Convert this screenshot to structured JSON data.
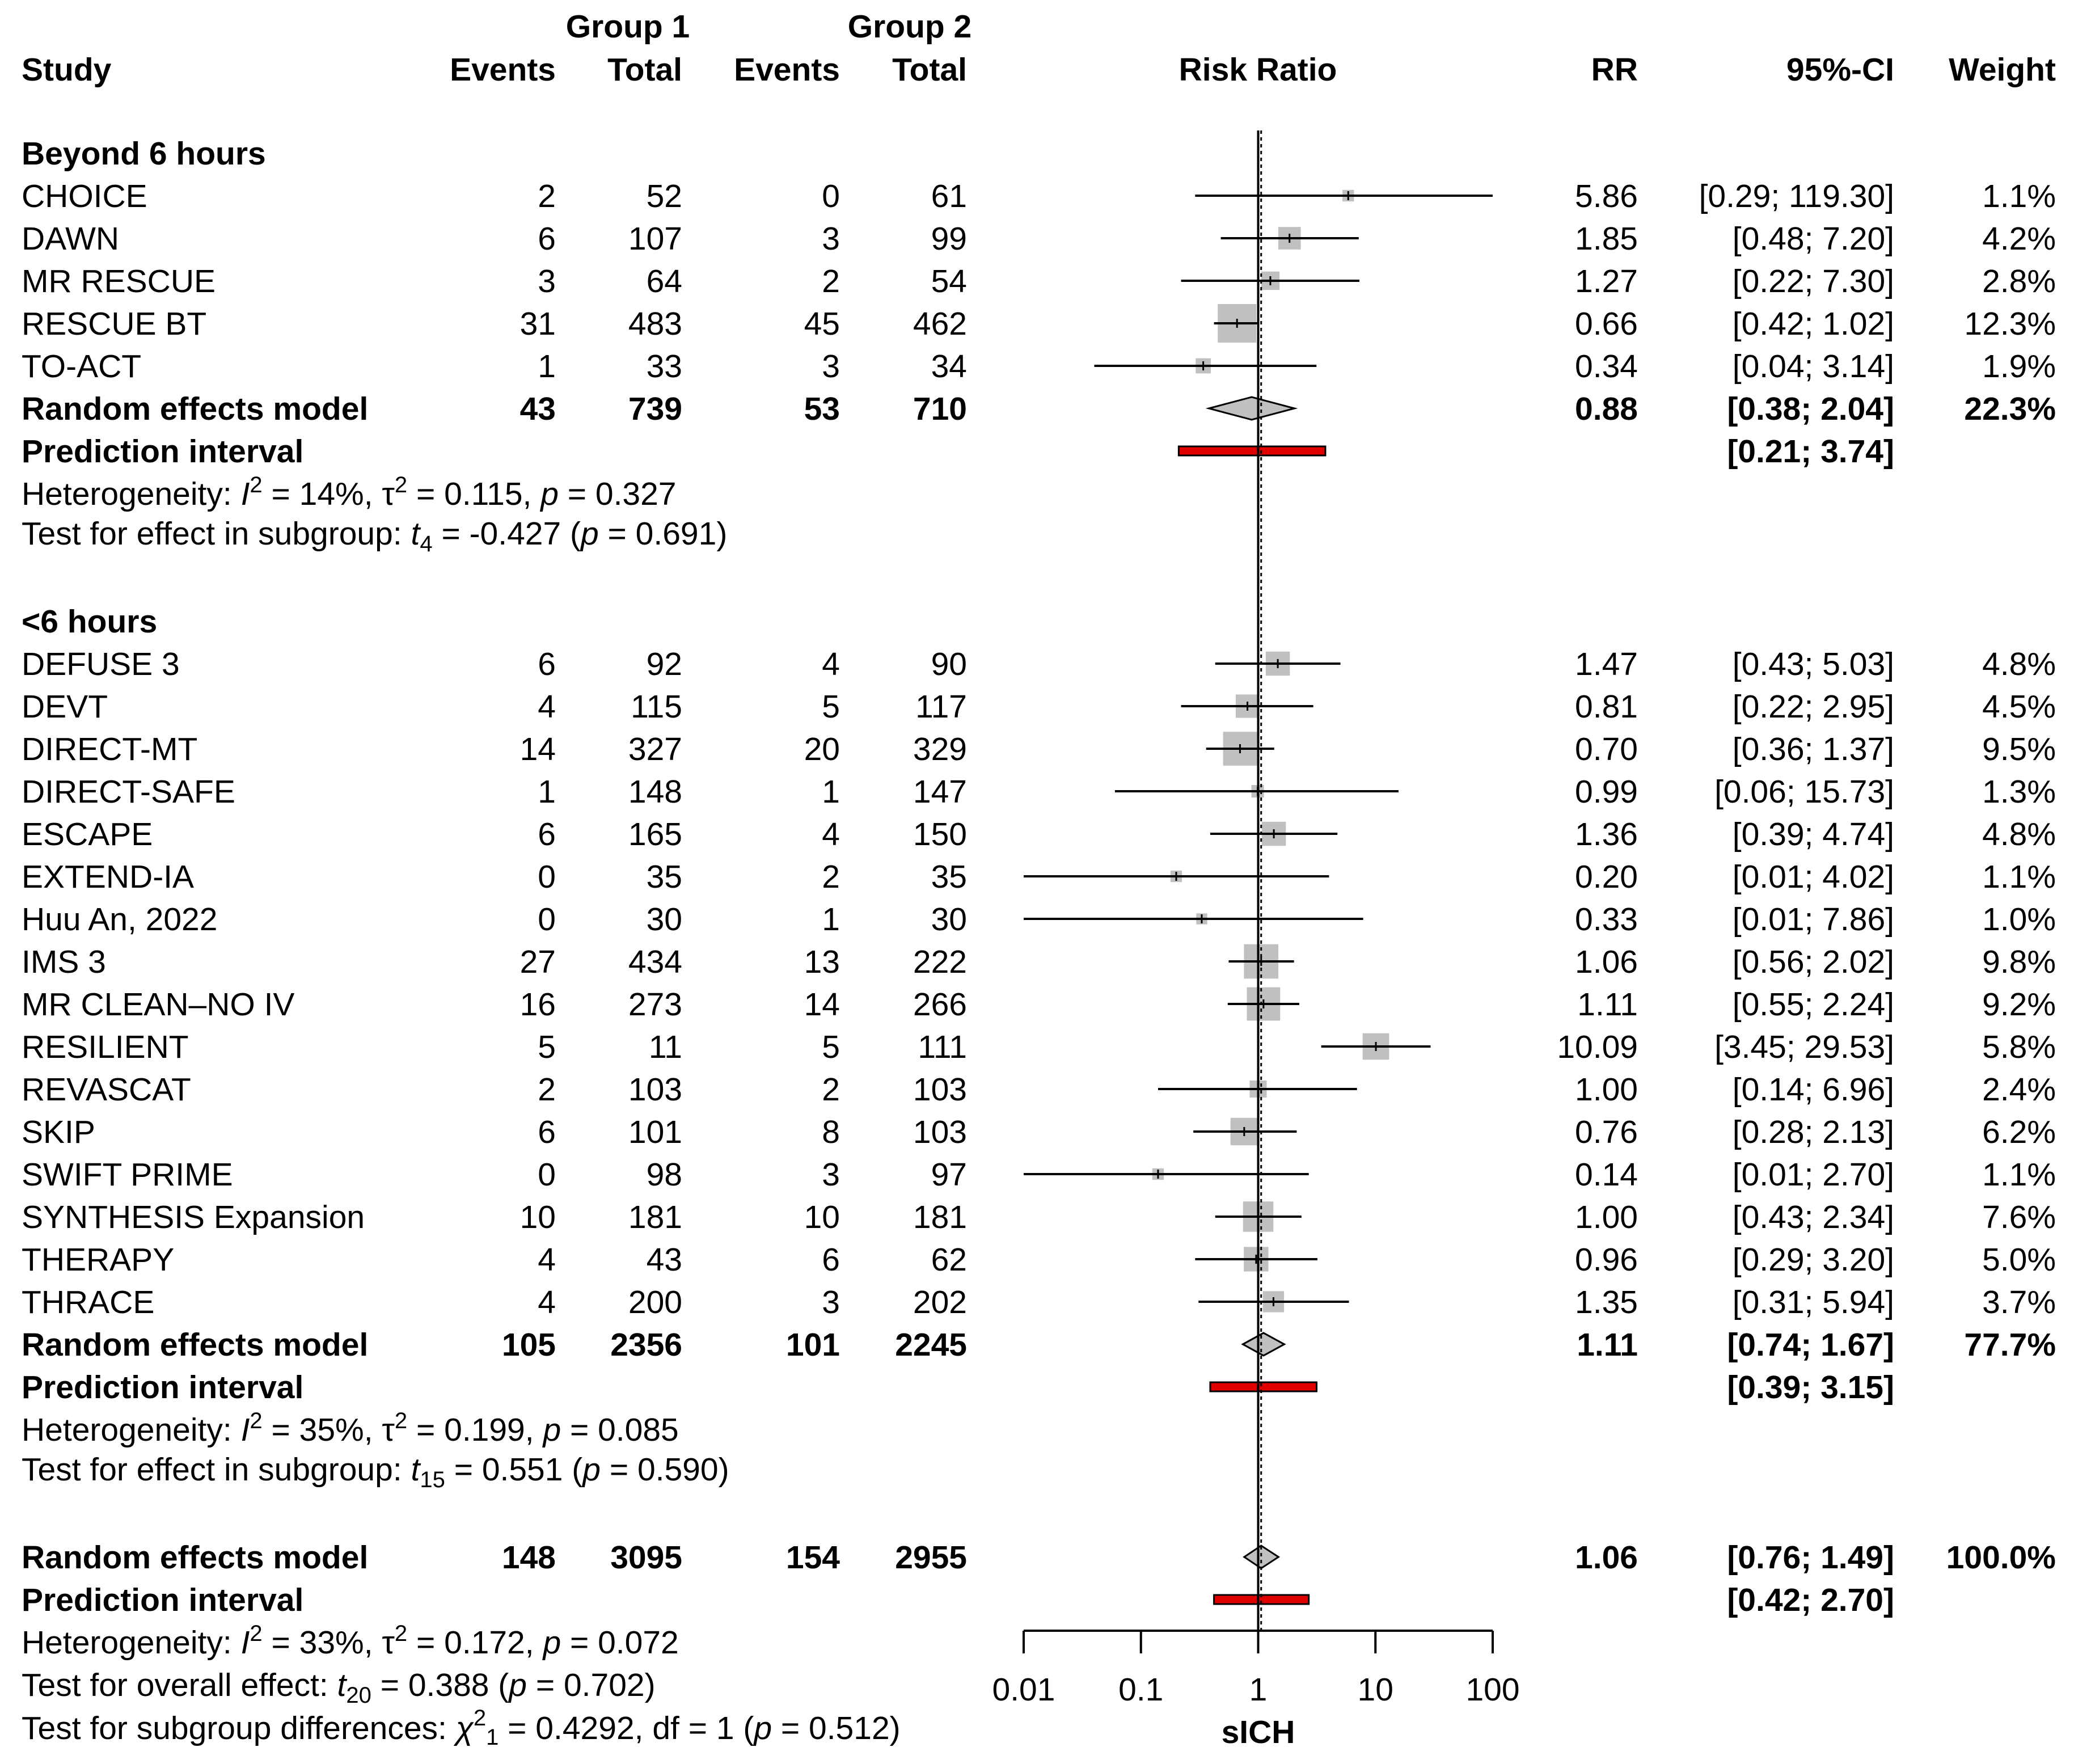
{
  "chart_data": {
    "type": "forest",
    "xaxis": {
      "scale": "log",
      "range": [
        0.01,
        100
      ],
      "ticks": [
        0.01,
        0.1,
        1,
        10,
        100
      ],
      "tick_labels": [
        "0.01",
        "0.1",
        "1",
        "10",
        "100"
      ],
      "label": "sICH",
      "null_value": 1,
      "overall_estimate": 1.06
    },
    "headers": {
      "group1": "Group 1",
      "group2": "Group 2",
      "study": "Study",
      "events": "Events",
      "total": "Total",
      "risk_ratio": "Risk Ratio",
      "rr": "RR",
      "ci": "95%-CI",
      "weight": "Weight"
    },
    "colors": {
      "box": "#c0c0c0",
      "diamond": "#c0c0c0",
      "prediction": "#e00000"
    },
    "subgroups": [
      {
        "name": "Beyond 6 hours",
        "studies": [
          {
            "study": "CHOICE",
            "e1": "2",
            "n1": "52",
            "e2": "0",
            "n2": "61",
            "rr": 5.86,
            "lo": 0.29,
            "hi": 119.3,
            "rr_text": "5.86",
            "ci_text": "[0.29; 119.30]",
            "weight": 1.1,
            "weight_text": "1.1%"
          },
          {
            "study": "DAWN",
            "e1": "6",
            "n1": "107",
            "e2": "3",
            "n2": "99",
            "rr": 1.85,
            "lo": 0.48,
            "hi": 7.2,
            "rr_text": "1.85",
            "ci_text": "[0.48;   7.20]",
            "weight": 4.2,
            "weight_text": "4.2%"
          },
          {
            "study": "MR RESCUE",
            "e1": "3",
            "n1": "64",
            "e2": "2",
            "n2": "54",
            "rr": 1.27,
            "lo": 0.22,
            "hi": 7.3,
            "rr_text": "1.27",
            "ci_text": "[0.22;   7.30]",
            "weight": 2.8,
            "weight_text": "2.8%"
          },
          {
            "study": "RESCUE BT",
            "e1": "31",
            "n1": "483",
            "e2": "45",
            "n2": "462",
            "rr": 0.66,
            "lo": 0.42,
            "hi": 1.02,
            "rr_text": "0.66",
            "ci_text": "[0.42;   1.02]",
            "weight": 12.3,
            "weight_text": "12.3%"
          },
          {
            "study": "TO-ACT",
            "e1": "1",
            "n1": "33",
            "e2": "3",
            "n2": "34",
            "rr": 0.34,
            "lo": 0.04,
            "hi": 3.14,
            "rr_text": "0.34",
            "ci_text": "[0.04;   3.14]",
            "weight": 1.9,
            "weight_text": "1.9%"
          }
        ],
        "model": {
          "label": "Random effects model",
          "e1": "43",
          "n1": "739",
          "e2": "53",
          "n2": "710",
          "rr": 0.88,
          "lo": 0.38,
          "hi": 2.04,
          "rr_text": "0.88",
          "ci_text": "[0.38;   2.04]",
          "weight_text": "22.3%"
        },
        "prediction": {
          "label": "Prediction interval",
          "lo": 0.21,
          "hi": 3.74,
          "ci_text": "[0.21;   3.74]"
        },
        "heterogeneity": {
          "prefix": "Heterogeneity: ",
          "I": "I",
          "sup": "2",
          "i2": " = 14%, ",
          "tau": "τ",
          "tau2": " = 0.115, ",
          "p": "p",
          "pval": " = 0.327"
        },
        "test": {
          "prefix": "Test for effect in subgroup: ",
          "t": "t",
          "df": "4",
          "tval": " = -0.427 (",
          "p": "p",
          "pval": " = 0.691)"
        }
      },
      {
        "name": "<6 hours",
        "studies": [
          {
            "study": "DEFUSE 3",
            "e1": "6",
            "n1": "92",
            "e2": "4",
            "n2": "90",
            "rr": 1.47,
            "lo": 0.43,
            "hi": 5.03,
            "rr_text": "1.47",
            "ci_text": "[0.43;   5.03]",
            "weight": 4.8,
            "weight_text": "4.8%"
          },
          {
            "study": "DEVT",
            "e1": "4",
            "n1": "115",
            "e2": "5",
            "n2": "117",
            "rr": 0.81,
            "lo": 0.22,
            "hi": 2.95,
            "rr_text": "0.81",
            "ci_text": "[0.22;   2.95]",
            "weight": 4.5,
            "weight_text": "4.5%"
          },
          {
            "study": "DIRECT-MT",
            "e1": "14",
            "n1": "327",
            "e2": "20",
            "n2": "329",
            "rr": 0.7,
            "lo": 0.36,
            "hi": 1.37,
            "rr_text": "0.70",
            "ci_text": "[0.36;   1.37]",
            "weight": 9.5,
            "weight_text": "9.5%"
          },
          {
            "study": "DIRECT-SAFE",
            "e1": "1",
            "n1": "148",
            "e2": "1",
            "n2": "147",
            "rr": 0.99,
            "lo": 0.06,
            "hi": 15.73,
            "rr_text": "0.99",
            "ci_text": "[0.06;  15.73]",
            "weight": 1.3,
            "weight_text": "1.3%"
          },
          {
            "study": "ESCAPE",
            "e1": "6",
            "n1": "165",
            "e2": "4",
            "n2": "150",
            "rr": 1.36,
            "lo": 0.39,
            "hi": 4.74,
            "rr_text": "1.36",
            "ci_text": "[0.39;   4.74]",
            "weight": 4.8,
            "weight_text": "4.8%"
          },
          {
            "study": "EXTEND-IA",
            "e1": "0",
            "n1": "35",
            "e2": "2",
            "n2": "35",
            "rr": 0.2,
            "lo": 0.01,
            "hi": 4.02,
            "rr_text": "0.20",
            "ci_text": "[0.01;   4.02]",
            "weight": 1.1,
            "weight_text": "1.1%"
          },
          {
            "study": "Huu An, 2022",
            "e1": "0",
            "n1": "30",
            "e2": "1",
            "n2": "30",
            "rr": 0.33,
            "lo": 0.01,
            "hi": 7.86,
            "rr_text": "0.33",
            "ci_text": "[0.01;   7.86]",
            "weight": 1.0,
            "weight_text": "1.0%"
          },
          {
            "study": "IMS 3",
            "e1": "27",
            "n1": "434",
            "e2": "13",
            "n2": "222",
            "rr": 1.06,
            "lo": 0.56,
            "hi": 2.02,
            "rr_text": "1.06",
            "ci_text": "[0.56;   2.02]",
            "weight": 9.8,
            "weight_text": "9.8%"
          },
          {
            "study": "MR CLEAN–NO IV",
            "e1": "16",
            "n1": "273",
            "e2": "14",
            "n2": "266",
            "rr": 1.11,
            "lo": 0.55,
            "hi": 2.24,
            "rr_text": "1.11",
            "ci_text": "[0.55;   2.24]",
            "weight": 9.2,
            "weight_text": "9.2%"
          },
          {
            "study": "RESILIENT",
            "e1": "5",
            "n1": "11",
            "e2": "5",
            "n2": "111",
            "rr": 10.09,
            "lo": 3.45,
            "hi": 29.53,
            "rr_text": "10.09",
            "ci_text": "[3.45;  29.53]",
            "weight": 5.8,
            "weight_text": "5.8%"
          },
          {
            "study": "REVASCAT",
            "e1": "2",
            "n1": "103",
            "e2": "2",
            "n2": "103",
            "rr": 1.0,
            "lo": 0.14,
            "hi": 6.96,
            "rr_text": "1.00",
            "ci_text": "[0.14;   6.96]",
            "weight": 2.4,
            "weight_text": "2.4%"
          },
          {
            "study": "SKIP",
            "e1": "6",
            "n1": "101",
            "e2": "8",
            "n2": "103",
            "rr": 0.76,
            "lo": 0.28,
            "hi": 2.13,
            "rr_text": "0.76",
            "ci_text": "[0.28;   2.13]",
            "weight": 6.2,
            "weight_text": "6.2%"
          },
          {
            "study": "SWIFT PRIME",
            "e1": "0",
            "n1": "98",
            "e2": "3",
            "n2": "97",
            "rr": 0.14,
            "lo": 0.01,
            "hi": 2.7,
            "rr_text": "0.14",
            "ci_text": "[0.01;   2.70]",
            "weight": 1.1,
            "weight_text": "1.1%"
          },
          {
            "study": "SYNTHESIS Expansion",
            "e1": "10",
            "n1": "181",
            "e2": "10",
            "n2": "181",
            "rr": 1.0,
            "lo": 0.43,
            "hi": 2.34,
            "rr_text": "1.00",
            "ci_text": "[0.43;   2.34]",
            "weight": 7.6,
            "weight_text": "7.6%"
          },
          {
            "study": "THERAPY",
            "e1": "4",
            "n1": "43",
            "e2": "6",
            "n2": "62",
            "rr": 0.96,
            "lo": 0.29,
            "hi": 3.2,
            "rr_text": "0.96",
            "ci_text": "[0.29;   3.20]",
            "weight": 5.0,
            "weight_text": "5.0%"
          },
          {
            "study": "THRACE",
            "e1": "4",
            "n1": "200",
            "e2": "3",
            "n2": "202",
            "rr": 1.35,
            "lo": 0.31,
            "hi": 5.94,
            "rr_text": "1.35",
            "ci_text": "[0.31;   5.94]",
            "weight": 3.7,
            "weight_text": "3.7%"
          }
        ],
        "model": {
          "label": "Random effects model",
          "e1": "105",
          "n1": "2356",
          "e2": "101",
          "n2": "2245",
          "rr": 1.11,
          "lo": 0.74,
          "hi": 1.67,
          "rr_text": "1.11",
          "ci_text": "[0.74;   1.67]",
          "weight_text": "77.7%"
        },
        "prediction": {
          "label": "Prediction interval",
          "lo": 0.39,
          "hi": 3.15,
          "ci_text": "[0.39;   3.15]"
        },
        "heterogeneity": {
          "prefix": "Heterogeneity: ",
          "I": "I",
          "sup": "2",
          "i2": " = 35%, ",
          "tau": "τ",
          "tau2": " = 0.199, ",
          "p": "p",
          "pval": " = 0.085"
        },
        "test": {
          "prefix": "Test for effect in subgroup: ",
          "t": "t",
          "df": "15",
          "tval": " = 0.551 (",
          "p": "p",
          "pval": " = 0.590)"
        }
      }
    ],
    "overall": {
      "model": {
        "label": "Random effects model",
        "e1": "148",
        "n1": "3095",
        "e2": "154",
        "n2": "2955",
        "rr": 1.06,
        "lo": 0.76,
        "hi": 1.49,
        "rr_text": "1.06",
        "ci_text": "[0.76;   1.49]",
        "weight_text": "100.0%"
      },
      "prediction": {
        "label": "Prediction interval",
        "lo": 0.42,
        "hi": 2.7,
        "ci_text": "[0.42;   2.70]"
      },
      "heterogeneity": {
        "prefix": "Heterogeneity: ",
        "I": "I",
        "sup": "2",
        "i2": " = 33%, ",
        "tau": "τ",
        "tau2": " = 0.172, ",
        "p": "p",
        "pval": " = 0.072"
      },
      "overall_test": {
        "prefix": "Test for overall effect: ",
        "t": "t",
        "df": "20",
        "tval": " = 0.388 (",
        "p": "p",
        "pval": " = 0.702)"
      },
      "subgroup_test": {
        "prefix": "Test for subgroup differences: ",
        "chi": "χ",
        "sup": "2",
        "df": "1",
        "chival": " = 0.4292, df = 1 (",
        "p": "p",
        "pval": " = 0.512)"
      }
    }
  }
}
